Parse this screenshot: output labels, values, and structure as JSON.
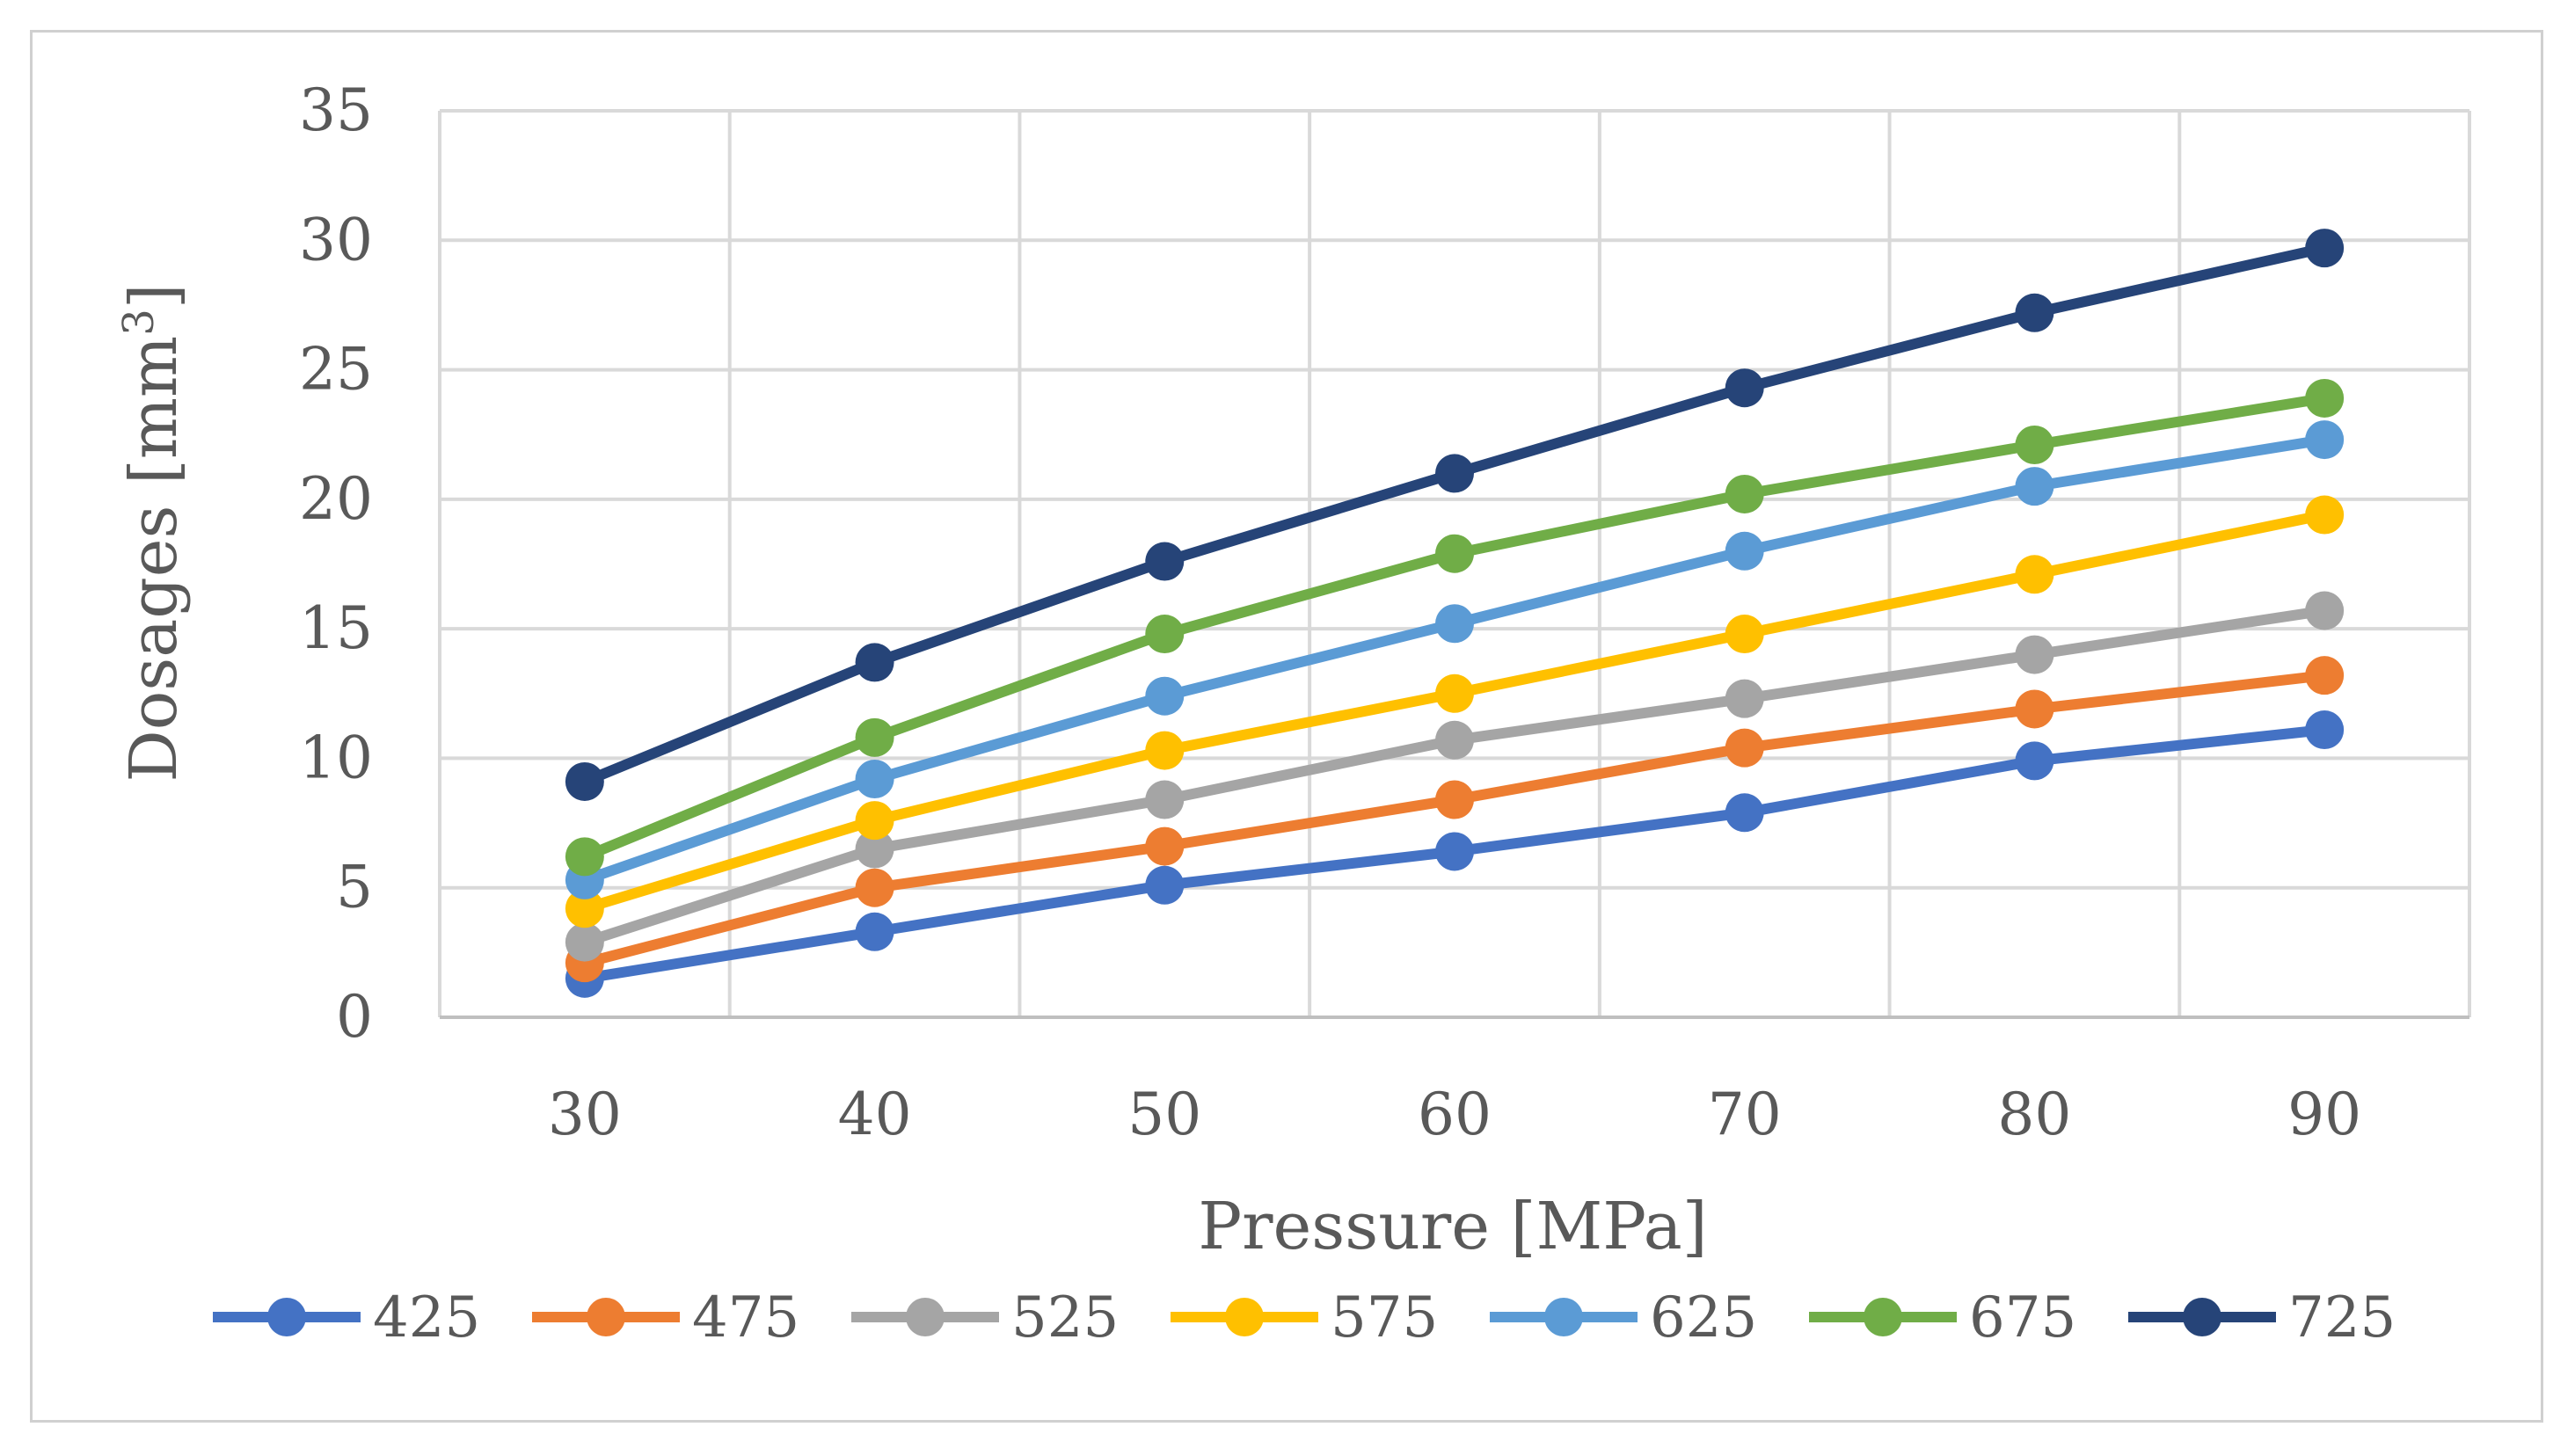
{
  "chart_data": {
    "type": "line",
    "title": "",
    "xlabel": "Pressure [MPa]",
    "ylabel": "Dosages [mm³]",
    "ylabel_main": "Dosages [mm",
    "ylabel_sup": "3",
    "ylabel_end": "]",
    "x": [
      30,
      40,
      50,
      60,
      70,
      80,
      90
    ],
    "x_tick_labels": [
      "30",
      "40",
      "50",
      "60",
      "70",
      "80",
      "90"
    ],
    "ylim": [
      0,
      35
    ],
    "y_ticks": [
      0,
      5,
      10,
      15,
      20,
      25,
      30,
      35
    ],
    "y_tick_labels": [
      "0",
      "5",
      "10",
      "15",
      "20",
      "25",
      "30",
      "35"
    ],
    "grid": true,
    "legend_position": "bottom",
    "series": [
      {
        "name": "425",
        "color": "#4472C4",
        "values": [
          1.5,
          3.3,
          5.1,
          6.4,
          7.9,
          9.9,
          11.1
        ]
      },
      {
        "name": "475",
        "color": "#ED7D31",
        "values": [
          2.1,
          5.0,
          6.6,
          8.4,
          10.4,
          11.9,
          13.2
        ]
      },
      {
        "name": "525",
        "color": "#A5A5A5",
        "values": [
          2.9,
          6.5,
          8.4,
          10.7,
          12.3,
          14.0,
          15.7
        ]
      },
      {
        "name": "575",
        "color": "#FFC000",
        "values": [
          4.2,
          7.6,
          10.3,
          12.5,
          14.8,
          17.1,
          19.4
        ]
      },
      {
        "name": "625",
        "color": "#5B9BD5",
        "values": [
          5.3,
          9.2,
          12.4,
          15.2,
          18.0,
          20.5,
          22.3
        ]
      },
      {
        "name": "675",
        "color": "#70AD47",
        "values": [
          6.2,
          10.8,
          14.8,
          17.9,
          20.2,
          22.1,
          23.9
        ]
      },
      {
        "name": "725",
        "color": "#264478",
        "values": [
          9.1,
          13.7,
          17.6,
          21.0,
          24.3,
          27.2,
          29.7
        ]
      }
    ]
  }
}
